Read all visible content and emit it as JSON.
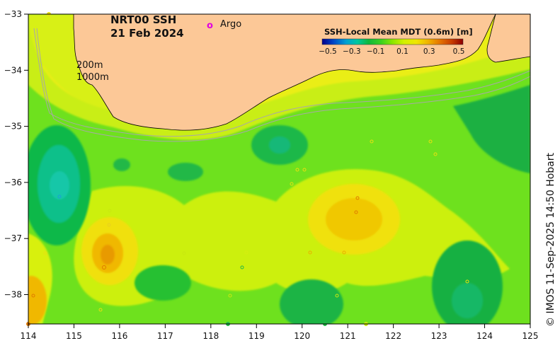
{
  "map": {
    "title": "NRT00 SSH",
    "date": "21 Feb 2024",
    "legend_marker_symbol": "o",
    "legend_marker_label": "Argo",
    "legend_marker_color": "#e000e0",
    "isobath_labels": [
      "200m",
      "1000m"
    ],
    "colorbar": {
      "title": "SSH-Local Mean MDT (0.6m) [m]",
      "tick_labels": [
        "−0.5",
        "−0.3",
        "−0.1",
        "0.1",
        "0.3",
        "0.5"
      ],
      "stops": [
        "#00008c",
        "#0046c8",
        "#00a0d2",
        "#00c8a0",
        "#10b83c",
        "#3cd21e",
        "#8ce600",
        "#d2f000",
        "#f0e600",
        "#f0b400",
        "#e67800",
        "#c83c00",
        "#8c0000"
      ]
    },
    "x_axis": {
      "ticks": [
        "114",
        "115",
        "116",
        "117",
        "118",
        "119",
        "120",
        "121",
        "122",
        "123",
        "124",
        "125"
      ]
    },
    "y_axis": {
      "ticks": [
        "−33",
        "−34",
        "−35",
        "−36",
        "−37",
        "−38"
      ]
    },
    "credit": "© IMOS 11-Sep-2025 14:50 Hobart",
    "land_color": "#fcc897",
    "ocean_base_color": "#6ee11e"
  }
}
